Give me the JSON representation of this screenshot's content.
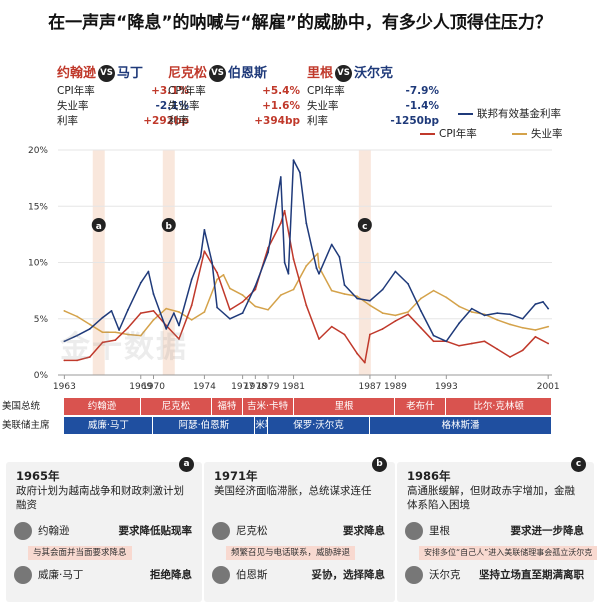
{
  "title": "在一声声“降息”的呐喊与“解雇”的威胁中，有多少人顶得住压力？",
  "pairs": [
    {
      "a": "约翰逊",
      "b": "马丁",
      "vs": "VS",
      "rows": [
        {
          "k": "CPI年率",
          "v": "+3.1%"
        },
        {
          "k": "失业率",
          "v": "-2.1%"
        },
        {
          "k": "利率",
          "v": "+292bp"
        }
      ]
    },
    {
      "a": "尼克松",
      "b": "伯恩斯",
      "vs": "VS",
      "rows": [
        {
          "k": "CPI年率",
          "v": "+5.4%"
        },
        {
          "k": "失业率",
          "v": "+1.6%"
        },
        {
          "k": "利率",
          "v": "+394bp"
        }
      ]
    },
    {
      "a": "里根",
      "b": "沃尔克",
      "vs": "VS",
      "rows": [
        {
          "k": "CPI年率",
          "v": "-7.9%"
        },
        {
          "k": "失业率",
          "v": "-1.4%"
        },
        {
          "k": "利率",
          "v": "-1250bp"
        }
      ]
    }
  ],
  "chart_data": {
    "type": "line",
    "xlim": [
      1962.5,
      2001.3
    ],
    "ylim": [
      0,
      20
    ],
    "y_ticks": [
      "0%",
      "5%",
      "10%",
      "15%",
      "20%"
    ],
    "y_tick_values": [
      0,
      5,
      10,
      15,
      20
    ],
    "x_tick_labels": [
      "1963",
      "1969",
      "1970",
      "1974",
      "1977",
      "1978",
      "1979",
      "1981",
      "1987",
      "1989",
      "1993",
      "2001"
    ],
    "x_tick_values": [
      1963,
      1969,
      1970,
      1974,
      1977,
      1978,
      1979,
      1981,
      1987,
      1989,
      1993,
      2001
    ],
    "series": [
      {
        "name": "联邦有效基金利率",
        "color": "#1f3a7a",
        "x": [
          1963,
          1964,
          1965,
          1966,
          1966.7,
          1967.3,
          1968,
          1969,
          1969.6,
          1970,
          1971,
          1971.6,
          1972,
          1973,
          1973.7,
          1974,
          1974.6,
          1975,
          1976,
          1977,
          1978,
          1979,
          1980,
          1980.3,
          1980.6,
          1981,
          1981.5,
          1982,
          1982.8,
          1983,
          1984,
          1984.6,
          1985,
          1986,
          1987,
          1988,
          1989,
          1990,
          1991,
          1992,
          1993,
          1994,
          1995,
          1996,
          1997,
          1998,
          1999,
          2000,
          2000.6,
          2001
        ],
        "y": [
          3.0,
          3.5,
          4.1,
          5.1,
          5.7,
          4.0,
          5.8,
          8.2,
          9.2,
          7.2,
          4.1,
          5.5,
          4.4,
          8.5,
          10.5,
          12.9,
          10.0,
          6.0,
          5.0,
          5.5,
          7.9,
          10.9,
          17.6,
          10.0,
          9.0,
          19.1,
          18.0,
          13.5,
          9.5,
          9.0,
          11.6,
          10.5,
          8.0,
          6.8,
          6.6,
          7.6,
          9.2,
          8.1,
          5.7,
          3.5,
          3.0,
          4.6,
          5.9,
          5.3,
          5.5,
          5.4,
          5.0,
          6.3,
          6.5,
          5.9
        ]
      },
      {
        "name": "CPI年率",
        "color": "#c0392b",
        "x": [
          1963,
          1964,
          1965,
          1966,
          1967,
          1968,
          1969,
          1970,
          1971,
          1972,
          1973,
          1974,
          1975,
          1976,
          1977,
          1978,
          1979,
          1980,
          1980.3,
          1981,
          1982,
          1983,
          1984,
          1985,
          1986,
          1986.6,
          1987,
          1988,
          1989,
          1990,
          1991,
          1992,
          1993,
          1994,
          1995,
          1996,
          1997,
          1998,
          1999,
          2000,
          2001
        ],
        "y": [
          1.3,
          1.3,
          1.6,
          2.9,
          3.1,
          4.2,
          5.5,
          5.7,
          4.4,
          3.2,
          6.2,
          11.0,
          9.1,
          5.8,
          6.5,
          7.6,
          11.3,
          13.5,
          14.6,
          10.3,
          6.2,
          3.2,
          4.3,
          3.6,
          1.9,
          1.1,
          3.6,
          4.1,
          4.8,
          5.4,
          4.2,
          3.0,
          3.0,
          2.6,
          2.8,
          3.0,
          2.3,
          1.6,
          2.2,
          3.4,
          2.8
        ]
      },
      {
        "name": "失业率",
        "color": "#d4a24a",
        "x": [
          1963,
          1964,
          1965,
          1966,
          1967,
          1968,
          1969,
          1970,
          1971,
          1972,
          1973,
          1974,
          1975,
          1975.5,
          1976,
          1977,
          1978,
          1979,
          1980,
          1981,
          1982,
          1982.9,
          1983,
          1984,
          1985,
          1986,
          1987,
          1988,
          1989,
          1990,
          1991,
          1992,
          1993,
          1994,
          1995,
          1996,
          1997,
          1998,
          1999,
          2000,
          2001
        ],
        "y": [
          5.7,
          5.2,
          4.5,
          3.8,
          3.8,
          3.6,
          3.5,
          4.9,
          5.9,
          5.6,
          4.9,
          5.6,
          8.5,
          8.9,
          7.7,
          7.1,
          6.1,
          5.8,
          7.1,
          7.6,
          9.7,
          10.8,
          9.6,
          7.5,
          7.2,
          7.0,
          6.2,
          5.5,
          5.3,
          5.6,
          6.8,
          7.5,
          6.9,
          6.1,
          5.6,
          5.4,
          4.9,
          4.5,
          4.2,
          4.0,
          4.3
        ]
      }
    ],
    "highlights": [
      {
        "x": 1965.7,
        "label": "a"
      },
      {
        "x": 1971.2,
        "label": "b"
      },
      {
        "x": 1986.6,
        "label": "c"
      }
    ]
  },
  "timeline": {
    "president_label": "美国总统",
    "chair_label": "美联储主席",
    "presidents": [
      {
        "name": "约翰逊",
        "from": 1963,
        "to": 1969
      },
      {
        "name": "尼克松",
        "from": 1969,
        "to": 1974.6
      },
      {
        "name": "福特",
        "from": 1974.6,
        "to": 1977
      },
      {
        "name": "吉米·卡特",
        "from": 1977,
        "to": 1981
      },
      {
        "name": "里根",
        "from": 1981,
        "to": 1989
      },
      {
        "name": "老布什",
        "from": 1989,
        "to": 1993
      },
      {
        "name": "比尔·克林顿",
        "from": 1993,
        "to": 2001.3
      }
    ],
    "chairs": [
      {
        "name": "威廉·马丁",
        "from": 1963,
        "to": 1970
      },
      {
        "name": "阿瑟·伯恩斯",
        "from": 1970,
        "to": 1978
      },
      {
        "name": "米勒",
        "from": 1978,
        "to": 1979
      },
      {
        "name": "保罗·沃尔克",
        "from": 1979,
        "to": 1987
      },
      {
        "name": "格林斯潘",
        "from": 1987,
        "to": 2001.3
      }
    ]
  },
  "cards": [
    {
      "badge": "a",
      "year": "1965年",
      "desc": "政府计划为越南战争和财政刺激计划融资",
      "p1": {
        "name": "约翰逊",
        "stance": "要求降低贴现率"
      },
      "note": "与其会面并当面要求降息",
      "p2": {
        "name": "威廉·马丁",
        "stance": "拒绝降息"
      }
    },
    {
      "badge": "b",
      "year": "1971年",
      "desc": "美国经济面临滞胀，总统谋求连任",
      "p1": {
        "name": "尼克松",
        "stance": "要求降息"
      },
      "note": "频繁召见与电话联系，威胁辞退",
      "p2": {
        "name": "伯恩斯",
        "stance": "妥协，选择降息"
      }
    },
    {
      "badge": "c",
      "year": "1986年",
      "desc": "高通胀缓解，但财政赤字增加，金融体系陷入困境",
      "p1": {
        "name": "里根",
        "stance": "要求进一步降息"
      },
      "note": "安排多位“自己人”进入美联储理事会孤立沃尔克",
      "p2": {
        "name": "沃尔克",
        "stance": "坚持立场直至期满离职"
      }
    }
  ],
  "watermark": "金十数据",
  "colors": {
    "red": "#c0392b",
    "navy": "#1f3a7a",
    "gold": "#d4a24a",
    "president_bar": "#d9534f",
    "chair_bar": "#1f4fa0"
  }
}
